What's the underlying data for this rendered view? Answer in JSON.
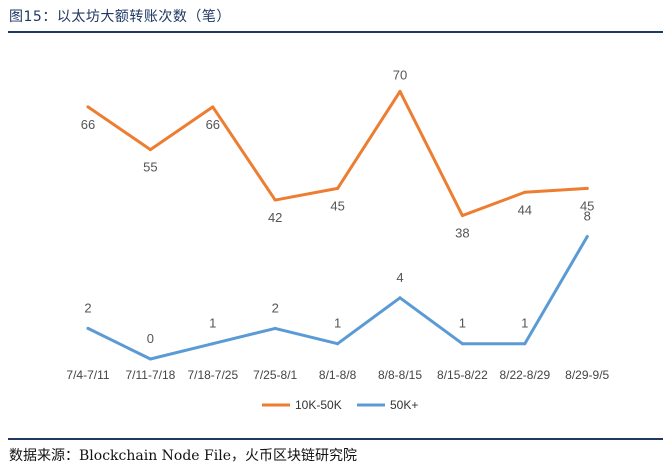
{
  "figure": {
    "title": "图15：以太坊大额转账次数（笔）",
    "source": "数据来源：Blockchain Node File，火币区块链研究院"
  },
  "colors": {
    "series1": "#ed7d31",
    "series2": "#5b9bd5"
  },
  "chart_data": {
    "type": "line",
    "categories": [
      "7/4-7/11",
      "7/11-7/18",
      "7/18-7/25",
      "7/25-8/1",
      "8/1-8/8",
      "8/8-8/15",
      "8/15-8/22",
      "8/22-8/29",
      "8/29-9/5"
    ],
    "series": [
      {
        "name": "10K-50K",
        "values": [
          66,
          55,
          66,
          42,
          45,
          70,
          38,
          44,
          45
        ]
      },
      {
        "name": "50K+",
        "values": [
          2,
          0,
          1,
          2,
          1,
          4,
          1,
          1,
          8
        ]
      }
    ],
    "legend": "bottom",
    "grid": false
  }
}
